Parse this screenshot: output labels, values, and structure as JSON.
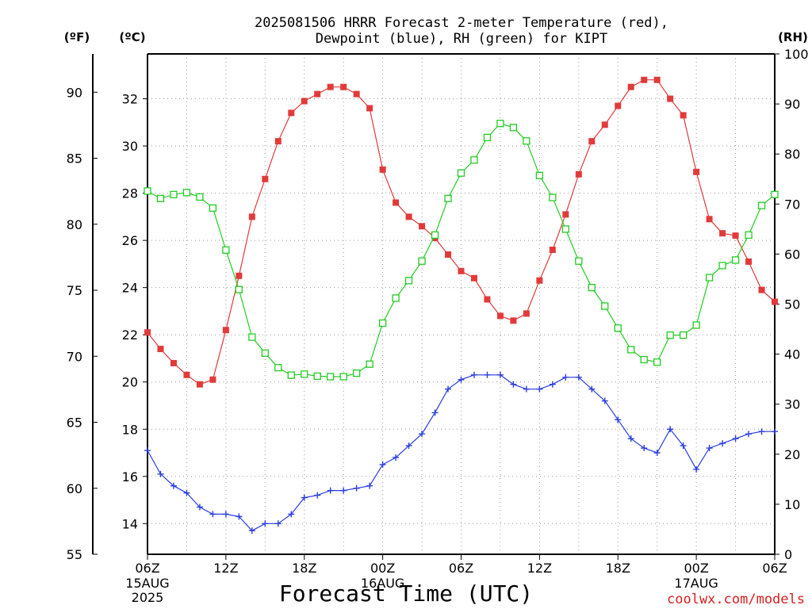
{
  "title_line1": "2025081506 HRRR Forecast 2-meter Temperature (red),",
  "title_line2": "Dewpoint (blue), RH (green) for KIPT",
  "xlabel": "Forecast Time (UTC)",
  "credit": "coolwx.com/models",
  "colors": {
    "temperature": "#e23a3a",
    "dewpoint": "#2a3de0",
    "rh": "#22cc22",
    "grid": "#9a9a9a",
    "credit": "#d62020"
  },
  "chart_data": {
    "type": "line",
    "title": "2025081506 HRRR Forecast 2-meter Temperature (red), Dewpoint (blue), RH (green) for KIPT",
    "xlabel": "Forecast Time (UTC)",
    "x_hours": [
      0,
      1,
      2,
      3,
      4,
      5,
      6,
      7,
      8,
      9,
      10,
      11,
      12,
      13,
      14,
      15,
      16,
      17,
      18,
      19,
      20,
      21,
      22,
      23,
      24,
      25,
      26,
      27,
      28,
      29,
      30,
      31,
      32,
      33,
      34,
      35,
      36,
      37,
      38,
      39,
      40,
      41,
      42,
      43,
      44,
      45,
      46,
      47,
      48
    ],
    "x_ticks": [
      {
        "hour": 0,
        "label": "06Z",
        "date": "15AUG",
        "year": "2025"
      },
      {
        "hour": 6,
        "label": "12Z"
      },
      {
        "hour": 12,
        "label": "18Z"
      },
      {
        "hour": 18,
        "label": "00Z",
        "date": "16AUG"
      },
      {
        "hour": 24,
        "label": "06Z"
      },
      {
        "hour": 30,
        "label": "12Z"
      },
      {
        "hour": 36,
        "label": "18Z"
      },
      {
        "hour": 42,
        "label": "00Z",
        "date": "17AUG"
      },
      {
        "hour": 48,
        "label": "06Z"
      }
    ],
    "axes": {
      "celsius": {
        "label": "(ºC)",
        "range": [
          12.7,
          33.9
        ],
        "ticks": [
          14,
          16,
          18,
          20,
          22,
          24,
          26,
          28,
          30,
          32
        ]
      },
      "fahrenheit": {
        "label": "(ºF)",
        "range": [
          55,
          92.9
        ],
        "ticks": [
          55,
          60,
          65,
          70,
          75,
          80,
          85,
          90
        ]
      },
      "rh": {
        "label": "(RH)",
        "range": [
          0,
          100
        ],
        "ticks": [
          0,
          10,
          20,
          30,
          40,
          50,
          60,
          70,
          80,
          90,
          100
        ]
      }
    },
    "grid": true,
    "series": [
      {
        "name": "Temperature",
        "axis": "celsius",
        "marker": "filled-square",
        "values": [
          22.1,
          21.4,
          20.8,
          20.3,
          19.9,
          20.1,
          22.2,
          24.5,
          27.0,
          28.6,
          30.2,
          31.4,
          31.9,
          32.2,
          32.5,
          32.5,
          32.2,
          31.6,
          29.0,
          27.6,
          27.0,
          26.6,
          26.1,
          25.4,
          24.7,
          24.4,
          23.5,
          22.8,
          22.6,
          22.9,
          24.3,
          25.6,
          27.1,
          28.8,
          30.2,
          30.9,
          31.7,
          32.5,
          32.8,
          32.8,
          32.0,
          31.3,
          28.9,
          26.9,
          26.3,
          26.2,
          25.1,
          23.9,
          23.4
        ]
      },
      {
        "name": "Dewpoint",
        "axis": "celsius",
        "marker": "plus",
        "values": [
          17.1,
          16.1,
          15.6,
          15.3,
          14.7,
          14.4,
          14.4,
          14.3,
          13.7,
          14.0,
          14.0,
          14.4,
          15.1,
          15.2,
          15.4,
          15.4,
          15.5,
          15.6,
          16.5,
          16.8,
          17.3,
          17.8,
          18.7,
          19.7,
          20.1,
          20.3,
          20.3,
          20.3,
          19.9,
          19.7,
          19.7,
          19.9,
          20.2,
          20.2,
          19.7,
          19.2,
          18.4,
          17.6,
          17.2,
          17.0,
          18.0,
          17.3,
          16.3,
          17.2,
          17.4,
          17.6,
          17.8,
          17.9,
          17.9
        ]
      },
      {
        "name": "RH",
        "axis": "rh",
        "marker": "open-square",
        "values": [
          72.6,
          71.1,
          71.9,
          72.3,
          71.4,
          69.2,
          60.8,
          52.9,
          43.4,
          40.2,
          37.3,
          35.8,
          36.0,
          35.6,
          35.5,
          35.5,
          36.2,
          38.0,
          46.2,
          51.2,
          54.7,
          58.6,
          63.8,
          71.1,
          76.2,
          78.8,
          83.3,
          86.1,
          85.3,
          82.6,
          75.7,
          71.3,
          65.0,
          58.6,
          53.3,
          49.6,
          45.2,
          40.9,
          38.9,
          38.4,
          43.8,
          43.8,
          45.8,
          55.3,
          57.7,
          58.8,
          63.8,
          69.7,
          71.9
        ]
      }
    ]
  }
}
